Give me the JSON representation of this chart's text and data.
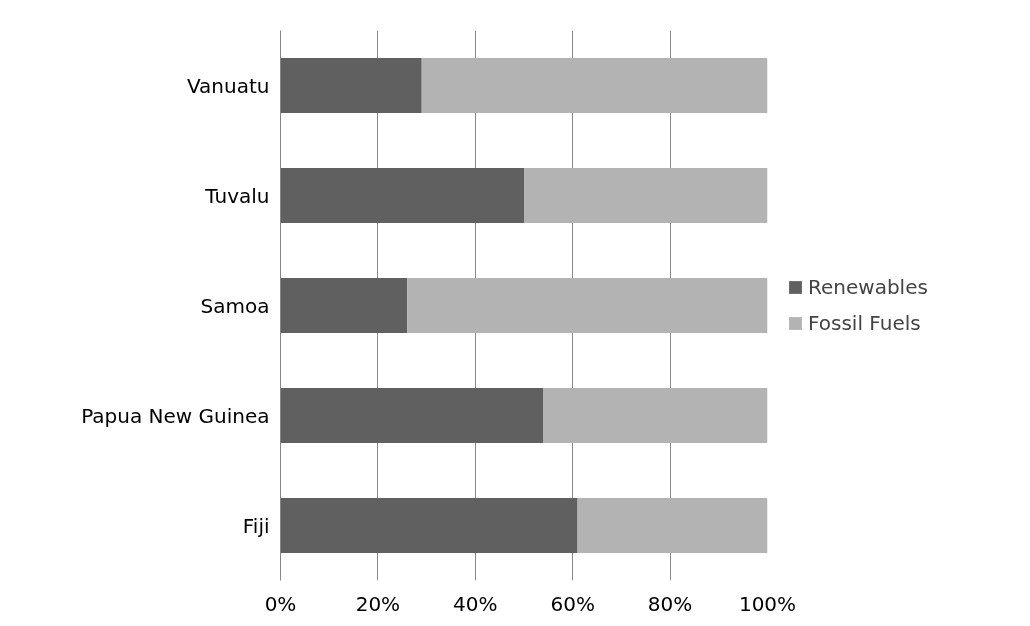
{
  "chart_data": {
    "type": "bar",
    "orientation": "horizontal",
    "stacked": true,
    "categories": [
      "Vanuatu",
      "Tuvalu",
      "Samoa",
      "Papua New Guinea",
      "Fiji"
    ],
    "series": [
      {
        "name": "Renewables",
        "color": "#606060",
        "values": [
          29,
          50,
          26,
          54,
          61
        ]
      },
      {
        "name": "Fossil Fuels",
        "color": "#b3b3b3",
        "values": [
          71,
          50,
          74,
          46,
          39
        ]
      }
    ],
    "xlim": [
      0,
      100
    ],
    "xticks": [
      {
        "value": 0,
        "label": "0%"
      },
      {
        "value": 20,
        "label": "20%"
      },
      {
        "value": 40,
        "label": "40%"
      },
      {
        "value": 60,
        "label": "60%"
      },
      {
        "value": 80,
        "label": "80%"
      },
      {
        "value": 100,
        "label": "100%"
      }
    ],
    "grid": "x",
    "legend": "right"
  }
}
